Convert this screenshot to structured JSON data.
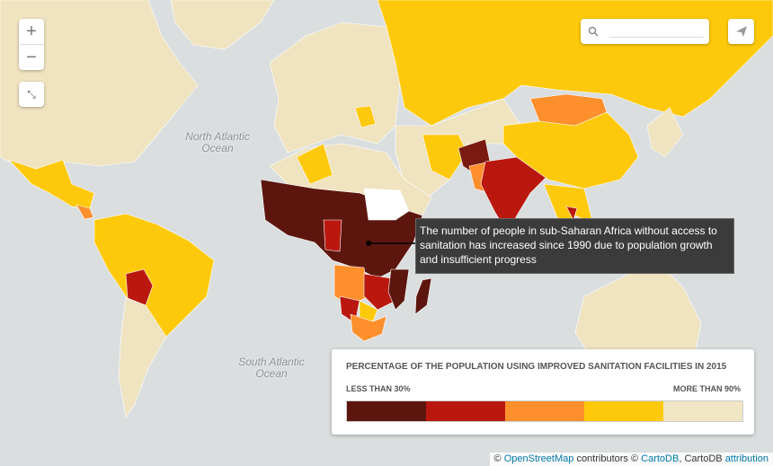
{
  "map": {
    "zoom_controls": {
      "zoom_in": "+",
      "zoom_out": "−"
    },
    "ocean_labels": [
      {
        "lines": [
          "North Atlantic",
          "Ocean"
        ]
      },
      {
        "lines": [
          "South Atlantic",
          "Ocean"
        ]
      }
    ],
    "annotation": "The number of people in sub-Saharan Africa without access to sanitation has increased since 1990 due to population growth and insufficient progress",
    "legend": {
      "title": "PERCENTAGE OF THE POPULATION USING IMPROVED SANITATION FACILITIES IN 2015",
      "low_label": "LESS THAN 30%",
      "high_label": "MORE THAN 90%",
      "colors": [
        "#5c160e",
        "#ba180f",
        "#fd8f2c",
        "#fec90b",
        "#f1e6c3"
      ]
    },
    "attribution": {
      "prefix": "©",
      "osm": "OpenStreetMap",
      "middle": "contributors ©",
      "cartodb": "CartoDB",
      "cartodb_2": ", CartoDB",
      "link": "attribution"
    }
  }
}
